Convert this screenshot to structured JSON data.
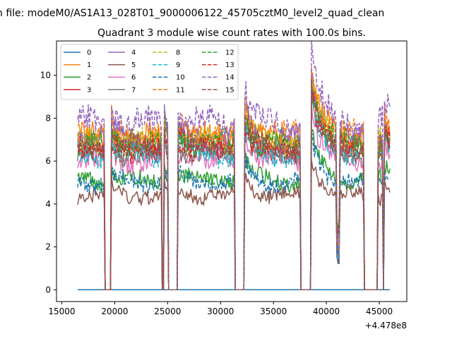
{
  "chart_data": {
    "type": "line",
    "suptitle": "n file: modeM0/AS1A13_028T01_9000006122_45705cztM0_level2_quad_clean",
    "title": "Quadrant 3 module wise count rates with 100.0s bins.",
    "xlabel": "",
    "ylabel": "",
    "x_offset_label": "+4.478e8",
    "xlim": [
      14500,
      47600
    ],
    "ylim": [
      -0.55,
      11.6
    ],
    "xticks": [
      15000,
      20000,
      25000,
      30000,
      35000,
      40000,
      45000
    ],
    "xtick_labels": [
      "15000",
      "20000",
      "25000",
      "30000",
      "35000",
      "40000",
      "45000"
    ],
    "yticks": [
      0,
      2,
      4,
      6,
      8,
      10
    ],
    "ytick_labels": [
      "0",
      "2",
      "4",
      "6",
      "8",
      "10"
    ],
    "legend_position": "upper-left",
    "legend_columns": 4,
    "bin_size_s": 100,
    "x_range": [
      16500,
      46000
    ],
    "series": [
      {
        "name": "0",
        "color": "#1f77b4",
        "dash": "solid",
        "level": 0.0
      },
      {
        "name": "1",
        "color": "#ff7f0e",
        "dash": "solid",
        "level": 7.1
      },
      {
        "name": "2",
        "color": "#2ca02c",
        "dash": "solid",
        "level": 5.1
      },
      {
        "name": "3",
        "color": "#d62728",
        "dash": "solid",
        "level": 6.6
      },
      {
        "name": "4",
        "color": "#9467bd",
        "dash": "solid",
        "level": 7.0
      },
      {
        "name": "5",
        "color": "#8c564b",
        "dash": "solid",
        "level": 4.4
      },
      {
        "name": "6",
        "color": "#e377c2",
        "dash": "solid",
        "level": 6.0
      },
      {
        "name": "7",
        "color": "#7f7f7f",
        "dash": "solid",
        "level": 6.3
      },
      {
        "name": "8",
        "color": "#bcbd22",
        "dash": "dashed",
        "level": 6.9
      },
      {
        "name": "9",
        "color": "#17becf",
        "dash": "dashed",
        "level": 6.3
      },
      {
        "name": "10",
        "color": "#1f77b4",
        "dash": "dashed",
        "level": 5.0
      },
      {
        "name": "11",
        "color": "#ff7f0e",
        "dash": "dashed",
        "level": 7.2
      },
      {
        "name": "12",
        "color": "#2ca02c",
        "dash": "dashed",
        "level": 6.8
      },
      {
        "name": "13",
        "color": "#d62728",
        "dash": "dashed",
        "level": 6.5
      },
      {
        "name": "14",
        "color": "#9467bd",
        "dash": "dashed",
        "level": 7.8
      },
      {
        "name": "15",
        "color": "#8c564b",
        "dash": "dashed",
        "level": 6.6
      }
    ],
    "gaps": [
      [
        19000,
        19700
      ],
      [
        24450,
        24650
      ],
      [
        25000,
        26000
      ],
      [
        31300,
        32300
      ],
      [
        37500,
        38600
      ],
      [
        43500,
        44900
      ],
      [
        45350,
        45450
      ]
    ],
    "events": [
      {
        "x": 32300,
        "boost": 1.5,
        "decay": 600
      },
      {
        "x": 38600,
        "boost": 3.0,
        "decay": 900
      },
      {
        "x": 45450,
        "boost": 1.0,
        "decay": 500
      },
      {
        "x": 26000,
        "boost": 0.5,
        "decay": 800
      },
      {
        "x": 24700,
        "boost": 1.0,
        "decay": 200
      },
      {
        "x": 19700,
        "boost": 0.6,
        "decay": 500
      }
    ]
  }
}
